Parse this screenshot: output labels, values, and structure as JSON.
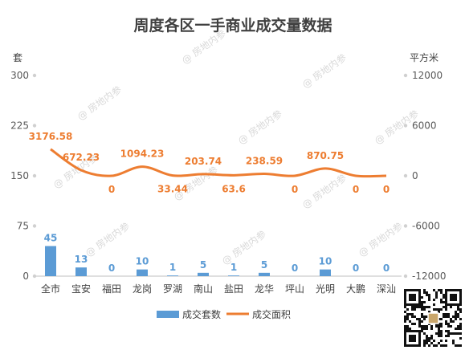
{
  "watermark": "@ 房地内参",
  "chart_data": {
    "type": "bar+line",
    "title": "周度各区一手商业成交量数据",
    "y_left_label": "套",
    "y_right_label": "平方米",
    "categories": [
      "全市",
      "宝安",
      "福田",
      "龙岗",
      "罗湖",
      "南山",
      "盐田",
      "龙华",
      "坪山",
      "光明",
      "大鹏",
      "深汕"
    ],
    "y_left_ticks": [
      0,
      75,
      150,
      225,
      300
    ],
    "y_left_range": [
      0,
      300
    ],
    "y_right_ticks": [
      -12000,
      -6000,
      0,
      6000,
      12000
    ],
    "y_right_range": [
      -12000,
      12000
    ],
    "series": [
      {
        "name": "成交套数",
        "type": "bar",
        "axis": "left",
        "values": [
          45,
          13,
          0,
          10,
          1,
          5,
          1,
          5,
          0,
          10,
          0,
          0
        ],
        "labels": [
          "45",
          "13",
          "0",
          "10",
          "1",
          "5",
          "1",
          "5",
          "0",
          "10",
          "0",
          "0"
        ]
      },
      {
        "name": "成交面积",
        "type": "line",
        "axis": "right",
        "smooth": true,
        "values": [
          3176.58,
          672.23,
          0,
          1094.23,
          33.44,
          203.74,
          63.6,
          238.59,
          0,
          870.75,
          0,
          0
        ],
        "labels": [
          "3176.58",
          "672.23",
          "0",
          "1094.23",
          "33.44",
          "203.74",
          "63.6",
          "238.59",
          "0",
          "870.75",
          "0",
          "0"
        ]
      }
    ],
    "colors": {
      "bar": "#5b9bd5",
      "line": "#ed7d31",
      "axis_text": "#595959"
    },
    "grid": false,
    "legend": "bottom"
  }
}
